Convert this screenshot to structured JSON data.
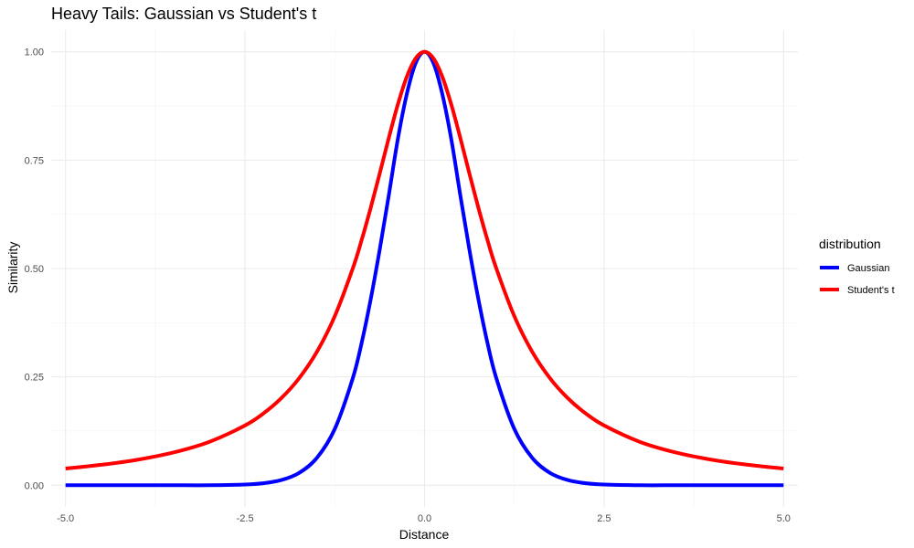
{
  "chart_data": {
    "type": "line",
    "title": "Heavy Tails: Gaussian vs Student's t",
    "xlabel": "Distance",
    "ylabel": "Similarity",
    "xlim": [
      -5.2,
      5.2
    ],
    "ylim": [
      -0.05,
      1.05
    ],
    "x_ticks": [
      -5.0,
      -2.5,
      0.0,
      2.5,
      5.0
    ],
    "x_tick_labels": [
      "-5.0",
      "-2.5",
      "0.0",
      "2.5",
      "5.0"
    ],
    "y_ticks": [
      0.0,
      0.25,
      0.5,
      0.75,
      1.0
    ],
    "y_tick_labels": [
      "0.00",
      "0.25",
      "0.50",
      "0.75",
      "1.00"
    ],
    "grid": true,
    "legend": {
      "title": "distribution",
      "position": "right"
    },
    "series": [
      {
        "name": "Gaussian",
        "color": "#0000ff",
        "x": [
          -5.0,
          -4.5,
          -4.0,
          -3.5,
          -3.0,
          -2.5,
          -2.25,
          -2.0,
          -1.75,
          -1.5,
          -1.25,
          -1.0,
          -0.875,
          -0.75,
          -0.625,
          -0.5,
          -0.375,
          -0.25,
          -0.125,
          0.0,
          0.125,
          0.25,
          0.375,
          0.5,
          0.625,
          0.75,
          0.875,
          1.0,
          1.25,
          1.5,
          1.75,
          2.0,
          2.25,
          2.5,
          3.0,
          3.5,
          4.0,
          4.5,
          5.0
        ],
        "y": [
          0.0,
          0.0,
          0.0,
          0.0,
          0.0,
          0.0016,
          0.0045,
          0.0117,
          0.0282,
          0.063,
          0.1299,
          0.2466,
          0.3292,
          0.4291,
          0.5431,
          0.6669,
          0.7957,
          0.9006,
          0.9735,
          1.0,
          0.9735,
          0.9006,
          0.7957,
          0.6669,
          0.5431,
          0.4291,
          0.3292,
          0.2466,
          0.1299,
          0.063,
          0.0282,
          0.0117,
          0.0045,
          0.0016,
          0.0,
          0.0,
          0.0,
          0.0,
          0.0
        ]
      },
      {
        "name": "Student's t",
        "color": "#ff0000",
        "x": [
          -5.0,
          -4.5,
          -4.0,
          -3.5,
          -3.0,
          -2.5,
          -2.25,
          -2.0,
          -1.75,
          -1.5,
          -1.25,
          -1.0,
          -0.875,
          -0.75,
          -0.625,
          -0.5,
          -0.375,
          -0.25,
          -0.125,
          0.0,
          0.125,
          0.25,
          0.375,
          0.5,
          0.625,
          0.75,
          0.875,
          1.0,
          1.25,
          1.5,
          1.75,
          2.0,
          2.25,
          2.5,
          3.0,
          3.5,
          4.0,
          4.5,
          5.0
        ],
        "y": [
          0.0385,
          0.0471,
          0.0588,
          0.0755,
          0.1,
          0.1379,
          0.1649,
          0.2,
          0.2462,
          0.3077,
          0.3902,
          0.5,
          0.5664,
          0.64,
          0.719,
          0.8,
          0.8767,
          0.9412,
          0.9846,
          1.0,
          0.9846,
          0.9412,
          0.8767,
          0.8,
          0.719,
          0.64,
          0.5664,
          0.5,
          0.3902,
          0.3077,
          0.2462,
          0.2,
          0.1649,
          0.1379,
          0.1,
          0.0755,
          0.0588,
          0.0471,
          0.0385
        ]
      }
    ]
  }
}
